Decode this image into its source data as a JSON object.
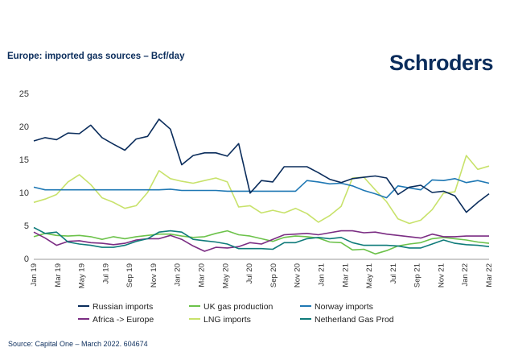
{
  "header": {
    "title": "Europe: imported gas sources – Bcf/day",
    "brand": "Schroders"
  },
  "footer": {
    "source": "Source: Capital One – March 2022. 604674"
  },
  "colors": {
    "russian": "#0b2d5c",
    "uk": "#6cc24a",
    "norway": "#1f78b4",
    "africa": "#7b2d83",
    "lng": "#c8e26b",
    "netherland": "#0f7b7a"
  },
  "chart_data": {
    "type": "line",
    "title": "Europe: imported gas sources – Bcf/day",
    "xlabel": "",
    "ylabel": "",
    "ylim": [
      0,
      25
    ],
    "yticks": [
      "0",
      "5",
      "10",
      "15",
      "20",
      "25"
    ],
    "x_tick_labels": [
      "Jan 19",
      "Mar 19",
      "May 19",
      "Jul 19",
      "Sep 19",
      "Nov 19",
      "Jan 20",
      "Mar 20",
      "May 20",
      "Jul 20",
      "Sep 20",
      "Nov 20",
      "Jan 21",
      "Mar 21",
      "May 21",
      "Jul 21",
      "Sep 21",
      "Nov 21",
      "Jan 22",
      "Mar 22"
    ],
    "grid": false,
    "legend_position": "bottom",
    "series": [
      {
        "name": "Russian imports",
        "color_key": "russian",
        "values": [
          17.8,
          18.3,
          18.0,
          19.0,
          18.9,
          20.2,
          18.3,
          17.3,
          16.4,
          18.1,
          18.5,
          21.1,
          19.6,
          14.2,
          15.6,
          16.0,
          16.0,
          15.5,
          17.4,
          9.9,
          11.8,
          11.6,
          13.9,
          13.9,
          13.9,
          13.0,
          12.0,
          11.5,
          12.1,
          12.3,
          12.5,
          12.2,
          9.7,
          10.8,
          11.1,
          10.0,
          10.2,
          9.5,
          7.0,
          8.5,
          9.8
        ]
      },
      {
        "name": "UK gas production",
        "color_key": "uk",
        "values": [
          3.3,
          3.8,
          3.5,
          3.4,
          3.5,
          3.3,
          2.9,
          3.3,
          3.0,
          3.3,
          3.5,
          3.7,
          3.7,
          3.4,
          3.2,
          3.3,
          3.8,
          4.2,
          3.6,
          3.4,
          3.0,
          2.6,
          3.2,
          3.4,
          3.3,
          3.1,
          2.5,
          2.4,
          1.3,
          1.4,
          0.7,
          1.2,
          1.9,
          2.2,
          2.4,
          3.0,
          3.2,
          3.0,
          2.8,
          2.5,
          2.3
        ]
      },
      {
        "name": "Norway imports",
        "color_key": "norway",
        "values": [
          10.8,
          10.4,
          10.4,
          10.4,
          10.4,
          10.4,
          10.4,
          10.4,
          10.4,
          10.4,
          10.4,
          10.4,
          10.5,
          10.3,
          10.3,
          10.3,
          10.3,
          10.2,
          10.2,
          10.2,
          10.2,
          10.2,
          10.2,
          10.2,
          11.8,
          11.6,
          11.3,
          11.4,
          11.0,
          10.3,
          9.8,
          9.2,
          11.0,
          10.7,
          10.4,
          11.9,
          11.8,
          12.1,
          11.5,
          11.8,
          11.4
        ]
      },
      {
        "name": "Africa -> Europe",
        "color_key": "africa",
        "values": [
          4.0,
          3.1,
          2.0,
          2.6,
          2.7,
          2.4,
          2.3,
          2.1,
          2.3,
          2.8,
          3.0,
          3.0,
          3.5,
          2.9,
          1.9,
          1.1,
          1.7,
          1.6,
          1.8,
          2.4,
          2.2,
          2.9,
          3.6,
          3.7,
          3.8,
          3.6,
          3.9,
          4.2,
          4.2,
          3.9,
          4.0,
          3.7,
          3.5,
          3.3,
          3.1,
          3.7,
          3.3,
          3.3,
          3.4,
          3.4,
          3.4
        ]
      },
      {
        "name": "LNG imports",
        "color_key": "lng",
        "values": [
          8.5,
          9.0,
          9.7,
          11.6,
          12.7,
          11.2,
          9.2,
          8.5,
          7.6,
          8.0,
          10.0,
          13.3,
          12.1,
          11.7,
          11.4,
          11.8,
          12.2,
          11.6,
          7.8,
          8.0,
          6.9,
          7.3,
          6.9,
          7.6,
          6.8,
          5.5,
          6.5,
          7.9,
          12.2,
          12.3,
          10.4,
          8.6,
          6.0,
          5.3,
          5.8,
          7.4,
          9.9,
          10.1,
          15.6,
          13.5,
          14.0
        ]
      },
      {
        "name": "Netherland Gas Prod",
        "color_key": "netherland",
        "values": [
          4.7,
          3.8,
          4.0,
          2.5,
          2.2,
          2.0,
          1.7,
          1.7,
          2.0,
          2.6,
          3.0,
          4.0,
          4.2,
          4.0,
          2.9,
          2.7,
          2.5,
          2.2,
          1.5,
          1.5,
          1.5,
          1.4,
          2.4,
          2.4,
          3.0,
          3.2,
          3.0,
          3.2,
          2.4,
          2.0,
          2.0,
          2.0,
          1.9,
          1.6,
          1.6,
          2.2,
          2.8,
          2.3,
          2.1,
          2.0,
          1.8
        ]
      }
    ]
  }
}
